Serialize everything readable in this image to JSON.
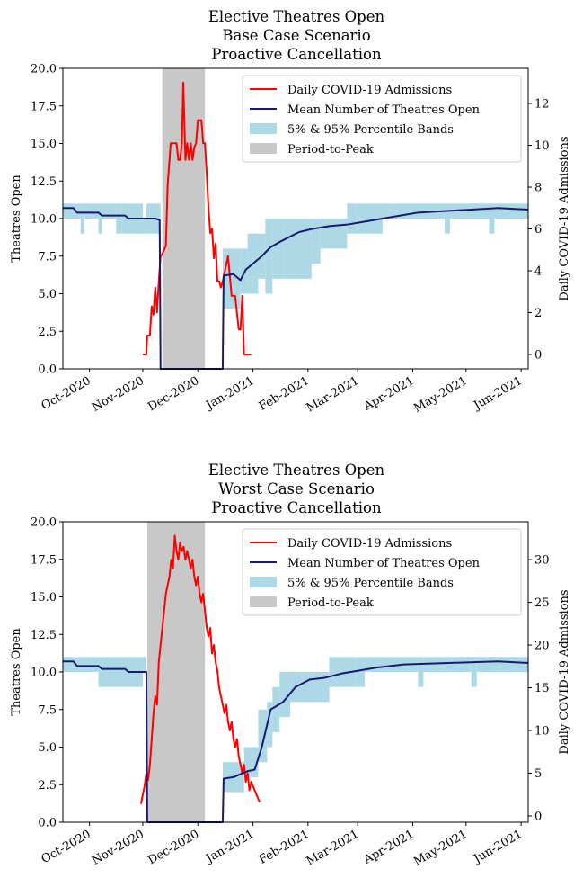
{
  "chart_data": [
    {
      "type": "line",
      "title": [
        "Elective Theatres Open",
        "Base Case Scenario",
        "Proactive Cancellation"
      ],
      "y_label": "Theatres Open",
      "y2_label": "Daily COVID-19 Admissions",
      "xlim": [
        0,
        262
      ],
      "xticks": [
        {
          "value": 15,
          "label": "Oct-2020"
        },
        {
          "value": 45,
          "label": "Nov-2020"
        },
        {
          "value": 76,
          "label": "Dec-2020"
        },
        {
          "value": 107,
          "label": "Jan-2021"
        },
        {
          "value": 138,
          "label": "Feb-2021"
        },
        {
          "value": 166,
          "label": "Mar-2021"
        },
        {
          "value": 197,
          "label": "Apr-2021"
        },
        {
          "value": 227,
          "label": "May-2021"
        },
        {
          "value": 258,
          "label": "Jun-2021"
        }
      ],
      "ylim": [
        0,
        20
      ],
      "yticks": [
        {
          "value": 0,
          "label": "0.0"
        },
        {
          "value": 2.5,
          "label": "2.5"
        },
        {
          "value": 5,
          "label": "5.0"
        },
        {
          "value": 7.5,
          "label": "7.5"
        },
        {
          "value": 10,
          "label": "10.0"
        },
        {
          "value": 12.5,
          "label": "12.5"
        },
        {
          "value": 15,
          "label": "15.0"
        },
        {
          "value": 17.5,
          "label": "17.5"
        },
        {
          "value": 20,
          "label": "20.0"
        }
      ],
      "y2lim": [
        -0.69,
        13.68
      ],
      "y2ticks": [
        0,
        2,
        4,
        6,
        8,
        10,
        12
      ],
      "legend": "upper right",
      "spans": [
        {
          "name": "Period-to-Peak",
          "color": "#c8c8c8",
          "x": [
            56,
            80
          ]
        }
      ],
      "bands": [
        {
          "name": "5% & 95% Percentile Bands",
          "color": "#add8e6",
          "bins": [
            0,
            10,
            12,
            20,
            22,
            30,
            33,
            45,
            47,
            55,
            90,
            100,
            104,
            110,
            114,
            118,
            124,
            140,
            145,
            160,
            165,
            180,
            184,
            215,
            218,
            240,
            243,
            262
          ],
          "lower": [
            10,
            9,
            10,
            9,
            10,
            9,
            9,
            9,
            9,
            0,
            4,
            5,
            5,
            6,
            5,
            6,
            6,
            7,
            8,
            9,
            9,
            10,
            10,
            9,
            10,
            9,
            10
          ],
          "upper": [
            11,
            11,
            11,
            11,
            11,
            11,
            11,
            10,
            11,
            0,
            8,
            8,
            9,
            9,
            10,
            10,
            10,
            10,
            10,
            11,
            11,
            11,
            11,
            11,
            11,
            11,
            11
          ]
        }
      ],
      "series": [
        {
          "name": "Daily COVID-19 Admissions",
          "color": "#ff0000",
          "axis": "y2",
          "x": [
            45,
            47,
            47.5,
            49,
            50,
            51,
            52,
            53,
            54,
            55,
            56,
            58,
            59,
            60.7,
            62,
            64,
            65,
            66,
            67,
            67.8,
            69,
            70,
            71,
            72,
            73,
            74,
            75,
            76,
            78,
            79,
            80,
            81,
            82,
            83,
            84,
            85,
            86,
            87,
            88,
            89,
            90,
            93,
            95,
            97,
            99,
            100,
            101,
            102,
            106
          ],
          "values": [
            0,
            0,
            0.9,
            0.9,
            2.3,
            1.9,
            3.2,
            2.0,
            3.5,
            4.7,
            4.8,
            5.2,
            8.1,
            10.1,
            10.1,
            10.1,
            9.3,
            9.3,
            10.1,
            13.0,
            9.3,
            10.1,
            9.3,
            10.1,
            9.3,
            9.9,
            10.1,
            11.2,
            11.2,
            10.1,
            10.1,
            8.6,
            7.0,
            5.8,
            6.0,
            4.6,
            5.3,
            3.5,
            3.5,
            3.2,
            3.5,
            4.7,
            2.8,
            2.8,
            1.2,
            1.2,
            2.8,
            0,
            0
          ]
        },
        {
          "name": "Mean Number of Theatres Open",
          "color": "#191970",
          "x": [
            0,
            6,
            8,
            20,
            22,
            35,
            37,
            52,
            54.5,
            55,
            90,
            90.5,
            96,
            100,
            103,
            107,
            112,
            117,
            123,
            128,
            133,
            140,
            150,
            160,
            170,
            180,
            190,
            200,
            215,
            230,
            245,
            262
          ],
          "values": [
            10.7,
            10.7,
            10.4,
            10.4,
            10.2,
            10.2,
            10.0,
            10.0,
            9.9,
            0,
            0,
            6.2,
            6.3,
            5.9,
            6.6,
            7.0,
            7.5,
            8.1,
            8.5,
            8.8,
            9.1,
            9.3,
            9.5,
            9.6,
            9.8,
            10.0,
            10.2,
            10.4,
            10.5,
            10.6,
            10.7,
            10.6
          ]
        }
      ]
    },
    {
      "type": "line",
      "title": [
        "Elective Theatres Open",
        "Worst Case Scenario",
        "Proactive Cancellation"
      ],
      "y_label": "Theatres Open",
      "y2_label": "Daily COVID-19 Admissions",
      "xlim": [
        0,
        262
      ],
      "xticks": [
        {
          "value": 15,
          "label": "Oct-2020"
        },
        {
          "value": 45,
          "label": "Nov-2020"
        },
        {
          "value": 76,
          "label": "Dec-2020"
        },
        {
          "value": 107,
          "label": "Jan-2021"
        },
        {
          "value": 138,
          "label": "Feb-2021"
        },
        {
          "value": 166,
          "label": "Mar-2021"
        },
        {
          "value": 197,
          "label": "Apr-2021"
        },
        {
          "value": 227,
          "label": "May-2021"
        },
        {
          "value": 258,
          "label": "Jun-2021"
        }
      ],
      "ylim": [
        0,
        20
      ],
      "yticks": [
        {
          "value": 0,
          "label": "0.0"
        },
        {
          "value": 2.5,
          "label": "2.5"
        },
        {
          "value": 5,
          "label": "5.0"
        },
        {
          "value": 7.5,
          "label": "7.5"
        },
        {
          "value": 10,
          "label": "10.0"
        },
        {
          "value": 12.5,
          "label": "12.5"
        },
        {
          "value": 15,
          "label": "15.0"
        },
        {
          "value": 17.5,
          "label": "17.5"
        },
        {
          "value": 20,
          "label": "20.0"
        }
      ],
      "y2lim": [
        -0.74,
        34.43
      ],
      "y2ticks": [
        0,
        5,
        10,
        15,
        20,
        25,
        30
      ],
      "legend": "upper right",
      "spans": [
        {
          "name": "Period-to-Peak",
          "color": "#c8c8c8",
          "x": [
            47.5,
            80
          ]
        }
      ],
      "bands": [
        {
          "name": "5% & 95% Percentile Bands",
          "color": "#add8e6",
          "bins": [
            0,
            20,
            22,
            45,
            47,
            90,
            102,
            110,
            115,
            118,
            122,
            128,
            135,
            150,
            165,
            170,
            200,
            203,
            230,
            233,
            262
          ],
          "lower": [
            10,
            9,
            9,
            10,
            0,
            2,
            3,
            4,
            5,
            6,
            7,
            8,
            8,
            9,
            9,
            10,
            9,
            10,
            9,
            10
          ],
          "upper": [
            11,
            11,
            11,
            11,
            0,
            4,
            5,
            7.5,
            8,
            9,
            10,
            10,
            10,
            11,
            11,
            11,
            11,
            11,
            11,
            11
          ]
        }
      ],
      "series": [
        {
          "name": "Daily COVID-19 Admissions",
          "color": "#ff0000",
          "axis": "y2",
          "x": [
            44,
            45,
            46,
            47,
            48,
            49,
            50,
            51,
            52,
            53,
            54,
            55,
            56,
            57,
            58,
            59,
            60,
            61,
            62,
            63,
            64,
            65,
            66,
            67,
            68,
            69,
            70,
            71,
            72,
            73,
            74,
            75,
            76,
            77,
            78,
            79,
            80,
            81,
            82,
            83,
            84,
            85,
            86,
            87,
            88,
            89,
            90,
            91,
            92,
            93,
            94,
            95,
            96,
            97,
            98,
            99,
            100,
            101,
            102,
            103,
            104,
            105,
            106,
            107,
            108,
            110.8
          ],
          "values": [
            1.4,
            2.5,
            3.5,
            5,
            4.2,
            6,
            9,
            12,
            14,
            13,
            18,
            20,
            22,
            24,
            26,
            27,
            28,
            30,
            29,
            32.8,
            31,
            30,
            32,
            31,
            31.5,
            30,
            31,
            30,
            29,
            30,
            28,
            27,
            28,
            26,
            25,
            26,
            24,
            22,
            21,
            22,
            19,
            20,
            18,
            17,
            15,
            14,
            13,
            12,
            13,
            11,
            10,
            11,
            9,
            8,
            9,
            7,
            6,
            5,
            6,
            4,
            5,
            3,
            4,
            3.5,
            3,
            1.6
          ]
        },
        {
          "name": "Mean Number of Theatres Open",
          "color": "#191970",
          "x": [
            0,
            6,
            8,
            20,
            22,
            35,
            37,
            46,
            47,
            47.5,
            90,
            90.5,
            96,
            104,
            108,
            112,
            117,
            124,
            131,
            139,
            147,
            157,
            167,
            177,
            192,
            217,
            245,
            262
          ],
          "values": [
            10.7,
            10.7,
            10.4,
            10.4,
            10.2,
            10.2,
            10.0,
            10.0,
            10.0,
            0,
            0,
            2.9,
            3.0,
            3.4,
            3.5,
            5.0,
            7.5,
            8.0,
            9.0,
            9.5,
            9.6,
            9.9,
            10.1,
            10.3,
            10.5,
            10.6,
            10.7,
            10.6
          ]
        }
      ]
    }
  ]
}
